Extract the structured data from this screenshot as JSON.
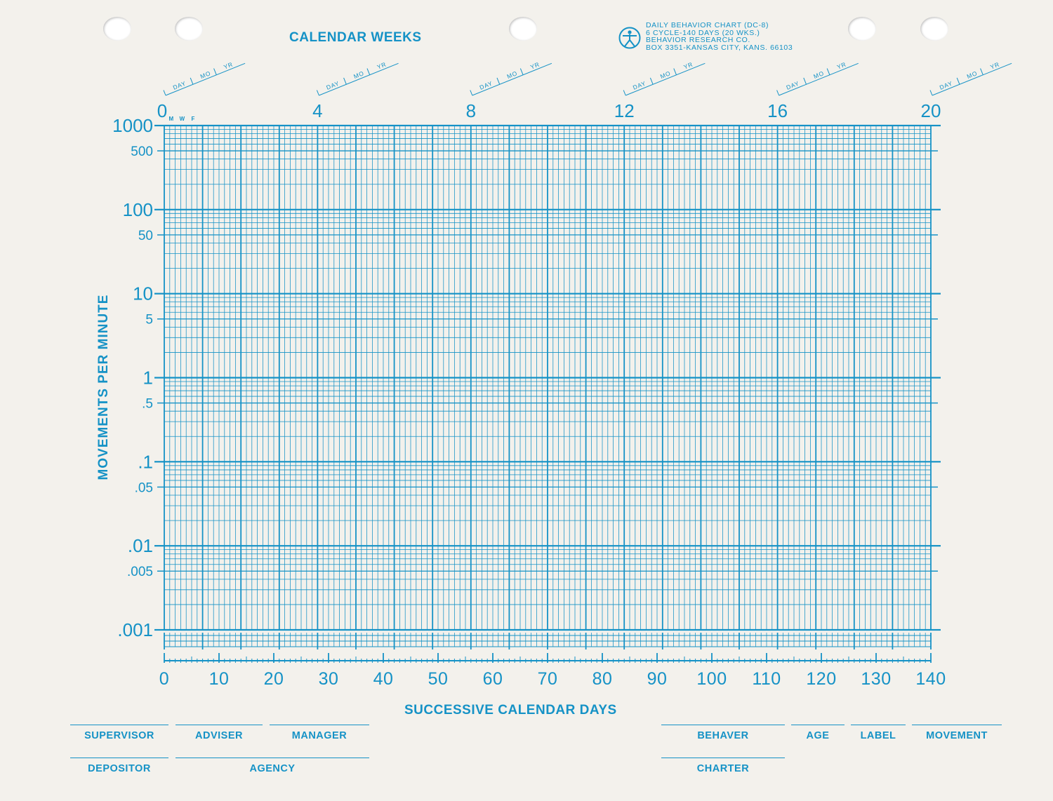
{
  "colors": {
    "ink": "#1592c6",
    "paper": "#f3f1ec"
  },
  "header": {
    "title": "CALENDAR WEEKS",
    "publisher_lines": [
      "DAILY BEHAVIOR CHART (DC-8)",
      "6 CYCLE-140 DAYS (20 WKS.)",
      "BEHAVIOR RESEARCH CO.",
      "BOX 3351-KANSAS CITY, KANS. 66103"
    ],
    "logo_icon": "human-figure-icon"
  },
  "date_blocks": [
    {
      "day": "DAY",
      "mo": "MO",
      "yr": "YR"
    },
    {
      "day": "DAY",
      "mo": "MO",
      "yr": "YR"
    },
    {
      "day": "DAY",
      "mo": "MO",
      "yr": "YR"
    },
    {
      "day": "DAY",
      "mo": "MO",
      "yr": "YR"
    },
    {
      "day": "DAY",
      "mo": "MO",
      "yr": "YR"
    },
    {
      "day": "DAY",
      "mo": "MO",
      "yr": "YR"
    }
  ],
  "chart_data": {
    "type": "line",
    "title": "",
    "xlabel": "SUCCESSIVE CALENDAR DAYS",
    "ylabel": "MOVEMENTS PER MINUTE",
    "x2label": "CALENDAR WEEKS",
    "xlim": [
      0,
      140
    ],
    "x_ticks": [
      0,
      10,
      20,
      30,
      40,
      50,
      60,
      70,
      80,
      90,
      100,
      110,
      120,
      130,
      140
    ],
    "x_tick_labels": [
      "0",
      "10",
      "20",
      "30",
      "40",
      "50",
      "60",
      "70",
      "80",
      "90",
      "100",
      "110",
      "120",
      "130",
      "140"
    ],
    "x2lim": [
      0,
      20
    ],
    "x2_ticks": [
      0,
      4,
      8,
      12,
      16,
      20
    ],
    "x2_tick_labels": [
      "0",
      "4",
      "8",
      "12",
      "16",
      "20"
    ],
    "day_markers": [
      "M",
      "W",
      "F"
    ],
    "ylim": [
      0.001,
      1000
    ],
    "y_scale": "log",
    "y_cycles": 6,
    "y_ticks": [
      1000,
      500,
      100,
      50,
      10,
      5,
      1,
      0.5,
      0.1,
      0.05,
      0.01,
      0.005,
      0.001
    ],
    "y_tick_labels": [
      "1000",
      "500",
      "100",
      "50",
      "10",
      "5",
      "1",
      ".5",
      ".1",
      ".05",
      ".01",
      ".005",
      ".001"
    ],
    "grid": true,
    "series": []
  },
  "footer": {
    "left_row1": [
      "SUPERVISOR",
      "ADVISER",
      "MANAGER"
    ],
    "left_row2": [
      "DEPOSITOR",
      "AGENCY"
    ],
    "right_row1": [
      "BEHAVER",
      "AGE",
      "LABEL",
      "MOVEMENT"
    ],
    "right_row2": [
      "CHARTER"
    ]
  }
}
